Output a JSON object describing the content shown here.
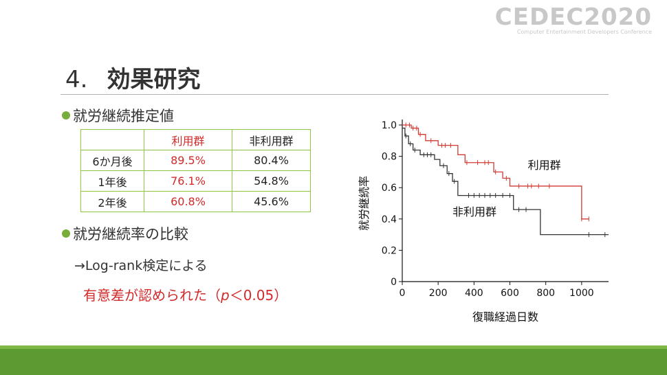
{
  "logo": {
    "main": "CEDEC2020",
    "sub": "Computer Entertainment Developers Conference"
  },
  "title": {
    "number": "4.",
    "text": "効果研究"
  },
  "bullet1": "就労継続推定値",
  "table": {
    "headers": [
      "",
      "利用群",
      "非利用群"
    ],
    "rows": [
      [
        "6か月後",
        "89.5%",
        "80.4%"
      ],
      [
        "1年後",
        "76.1%",
        "54.8%"
      ],
      [
        "2年後",
        "60.8%",
        "45.6%"
      ]
    ]
  },
  "bullet2": "就労継続率の比較",
  "comparison": "→Log-rank検定による",
  "result": {
    "prefix": "有意差が認められた（",
    "p": "p",
    "suffix": "＜0.05）"
  },
  "colors": {
    "accent_green": "#78ad3b",
    "red": "#d22a2a",
    "footer": "#5c9a32"
  },
  "chart_data": {
    "type": "line",
    "step": true,
    "xlabel": "復職経過日数",
    "ylabel": "就労継続率",
    "xlim": [
      0,
      1150
    ],
    "ylim": [
      0,
      1.0
    ],
    "xticks": [
      0,
      200,
      400,
      600,
      800,
      1000
    ],
    "yticks": [
      0,
      0.2,
      0.4,
      0.6,
      0.8,
      1.0
    ],
    "ytick_labels": [
      "0",
      "0.2",
      "0.4",
      "0.6",
      "0.8",
      "1.0"
    ],
    "grid": false,
    "series": [
      {
        "name": "利用群",
        "color": "#d03a32",
        "x": [
          0,
          50,
          90,
          130,
          200,
          250,
          310,
          350,
          400,
          510,
          560,
          600,
          980,
          1000,
          1040
        ],
        "y": [
          1.0,
          0.98,
          0.94,
          0.9,
          0.87,
          0.87,
          0.81,
          0.76,
          0.76,
          0.7,
          0.66,
          0.61,
          0.61,
          0.4,
          0.4
        ],
        "censored_x": [
          20,
          40,
          60,
          80,
          100,
          160,
          220,
          240,
          270,
          360,
          420,
          460,
          480,
          520,
          580,
          650,
          700,
          720,
          760,
          820,
          1000,
          1040
        ]
      },
      {
        "name": "非利用群",
        "color": "#333333",
        "x": [
          0,
          15,
          35,
          60,
          100,
          150,
          180,
          210,
          250,
          280,
          310,
          330,
          600,
          620,
          700,
          770,
          1150
        ],
        "y": [
          0.98,
          0.93,
          0.88,
          0.84,
          0.81,
          0.81,
          0.78,
          0.74,
          0.69,
          0.64,
          0.55,
          0.55,
          0.55,
          0.46,
          0.46,
          0.3,
          0.3
        ],
        "censored_x": [
          20,
          45,
          70,
          120,
          140,
          160,
          230,
          260,
          290,
          370,
          400,
          430,
          460,
          490,
          520,
          560,
          600,
          650,
          690,
          1040,
          1130
        ]
      }
    ]
  }
}
